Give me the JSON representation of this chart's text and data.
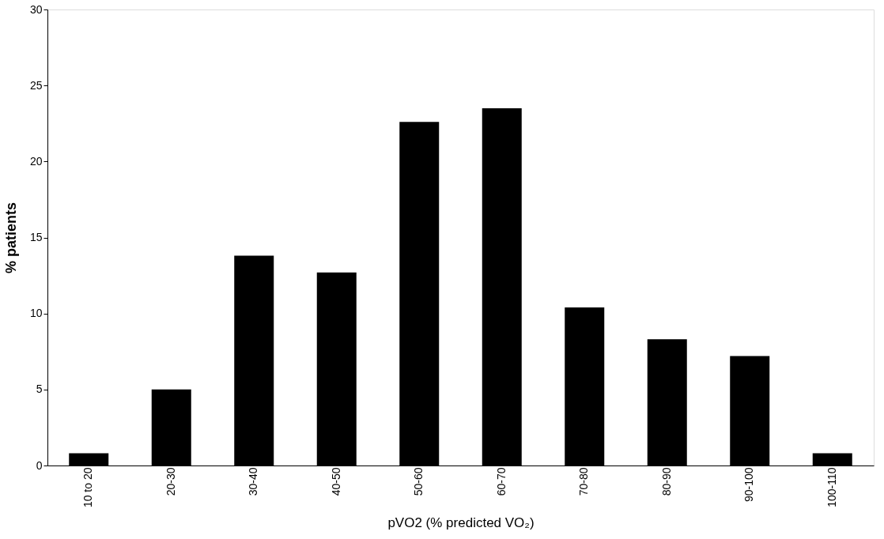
{
  "chart_data": {
    "type": "bar",
    "xlabel": "pVO2 (% predicted VO₂)",
    "ylabel": "% patients",
    "categories": [
      "10 to 20",
      "20-30",
      "30-40",
      "40-50",
      "50-60",
      "60-70",
      "70-80",
      "80-90",
      "90-100",
      "100-110"
    ],
    "values": [
      0.8,
      5,
      13.8,
      12.7,
      22.6,
      23.5,
      10.4,
      8.3,
      7.2,
      0.8
    ],
    "color": "#000000",
    "ylim": [
      0,
      30
    ],
    "yticks": [
      0,
      5,
      10,
      15,
      20,
      25,
      30
    ],
    "grid": false
  }
}
